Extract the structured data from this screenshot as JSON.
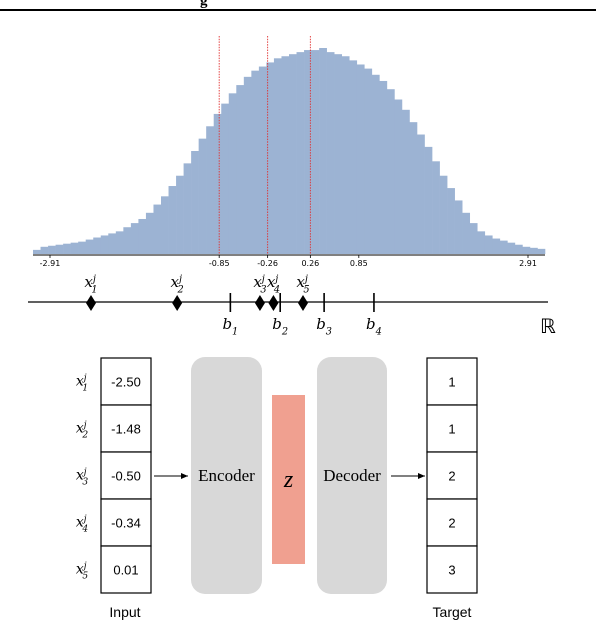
{
  "header": {
    "text": "g"
  },
  "histogram": {
    "tick_labels": [
      "-2.91",
      "-0.85",
      "-0.26",
      "0.26",
      "0.85",
      "2.91"
    ],
    "tick_values": [
      -2.91,
      -0.85,
      -0.26,
      0.26,
      0.85,
      2.91
    ],
    "boundaries": [
      -0.85,
      -0.26,
      0.26
    ],
    "bar_color": "#9cb3d3",
    "boundary_color": "#e03030",
    "bin_heights": [
      0.02,
      0.035,
      0.04,
      0.045,
      0.05,
      0.055,
      0.06,
      0.07,
      0.08,
      0.09,
      0.1,
      0.11,
      0.13,
      0.15,
      0.17,
      0.2,
      0.24,
      0.28,
      0.33,
      0.38,
      0.44,
      0.5,
      0.56,
      0.62,
      0.68,
      0.73,
      0.78,
      0.82,
      0.86,
      0.89,
      0.91,
      0.93,
      0.95,
      0.96,
      0.97,
      0.98,
      0.99,
      0.99,
      1.0,
      0.98,
      0.97,
      0.96,
      0.94,
      0.92,
      0.9,
      0.87,
      0.84,
      0.8,
      0.75,
      0.7,
      0.64,
      0.58,
      0.52,
      0.45,
      0.38,
      0.32,
      0.26,
      0.2,
      0.15,
      0.11,
      0.09,
      0.075,
      0.065,
      0.055,
      0.045,
      0.035,
      0.03,
      0.025
    ]
  },
  "number_line": {
    "points": [
      {
        "label": "x",
        "sub": "1",
        "sup": "j",
        "value": -2.5
      },
      {
        "label": "x",
        "sub": "2",
        "sup": "j",
        "value": -1.48
      },
      {
        "label": "x",
        "sub": "3",
        "sup": "j",
        "value": -0.5
      },
      {
        "label": "x",
        "sub": "4",
        "sup": "j",
        "value": -0.34
      },
      {
        "label": "x",
        "sub": "5",
        "sup": "j",
        "value": 0.01
      }
    ],
    "bins": [
      {
        "label": "b",
        "sub": "1",
        "value": -0.85
      },
      {
        "label": "b",
        "sub": "2",
        "value": -0.26
      },
      {
        "label": "b",
        "sub": "3",
        "value": 0.26
      },
      {
        "label": "b",
        "sub": "4",
        "value": 0.85
      }
    ],
    "reals_symbol": "ℝ"
  },
  "input": {
    "caption": "Input",
    "rows": [
      {
        "var": "x",
        "sub": "1",
        "sup": "j",
        "value": "-2.50"
      },
      {
        "var": "x",
        "sub": "2",
        "sup": "j",
        "value": "-1.48"
      },
      {
        "var": "x",
        "sub": "3",
        "sup": "j",
        "value": "-0.50"
      },
      {
        "var": "x",
        "sub": "4",
        "sup": "j",
        "value": "-0.34"
      },
      {
        "var": "x",
        "sub": "5",
        "sup": "j",
        "value": "0.01"
      }
    ]
  },
  "encoder": {
    "label": "Encoder"
  },
  "latent": {
    "label": "z",
    "color": "#f0a090"
  },
  "decoder": {
    "label": "Decoder"
  },
  "target": {
    "caption": "Target",
    "values": [
      "1",
      "1",
      "2",
      "2",
      "3"
    ]
  },
  "colors": {
    "block_gray": "#d8d8d8"
  }
}
